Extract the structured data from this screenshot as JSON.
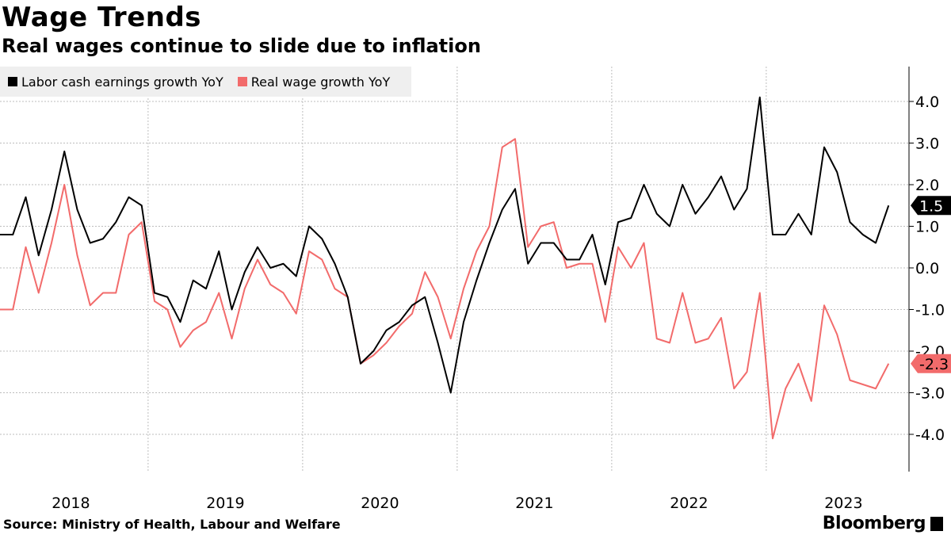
{
  "header": {
    "title": "Wage Trends",
    "subtitle": "Real wages continue to slide due to inflation"
  },
  "footer": {
    "source": "Source: Ministry of Health, Labour and Welfare",
    "brand": "Bloomberg"
  },
  "colors": {
    "labor": "#000000",
    "real": "#f26b6b",
    "grid": "#bdbdbd",
    "legend_bg": "#efefef"
  },
  "chart_data": {
    "type": "line",
    "title": "Wage Trends",
    "subtitle": "Real wages continue to slide due to inflation",
    "xlabel": "",
    "ylabel": "",
    "ylim": [
      -4.9,
      4.9
    ],
    "yticks": [
      4.0,
      3.0,
      2.0,
      1.0,
      0.0,
      -1.0,
      -2.0,
      -3.0,
      -4.0
    ],
    "ytick_labels": [
      "4.0",
      "3.0",
      "2.0",
      "1.0",
      "0.0",
      "-1.0",
      "-2.0",
      "-3.0",
      "-4.0"
    ],
    "grid": true,
    "legend_position": "top-left",
    "year_labels": [
      "2018",
      "2019",
      "2020",
      "2021",
      "2022",
      "2023"
    ],
    "x_start": "2018-01",
    "months_per_point": 1,
    "series": [
      {
        "name": "Labor cash earnings growth YoY",
        "end_label": "1.5",
        "values": [
          0.8,
          0.8,
          1.7,
          0.3,
          1.4,
          2.8,
          1.4,
          0.6,
          0.7,
          1.1,
          1.7,
          1.5,
          -0.6,
          -0.7,
          -1.3,
          -0.3,
          -0.5,
          0.4,
          -1.0,
          -0.1,
          0.5,
          0.0,
          0.1,
          -0.2,
          1.0,
          0.7,
          0.1,
          -0.7,
          -2.3,
          -2.0,
          -1.5,
          -1.3,
          -0.9,
          -0.7,
          -1.8,
          -3.0,
          -1.3,
          -0.3,
          0.6,
          1.4,
          1.9,
          0.1,
          0.6,
          0.6,
          0.2,
          0.2,
          0.8,
          -0.4,
          1.1,
          1.2,
          2.0,
          1.3,
          1.0,
          2.0,
          1.3,
          1.7,
          2.2,
          1.4,
          1.9,
          4.1,
          0.8,
          0.8,
          1.3,
          0.8,
          2.9,
          2.3,
          1.1,
          0.8,
          0.6,
          1.5
        ]
      },
      {
        "name": "Real wage growth YoY",
        "end_label": "-2.3",
        "values": [
          -1.0,
          -1.0,
          0.5,
          -0.6,
          0.6,
          2.0,
          0.3,
          -0.9,
          -0.6,
          -0.6,
          0.8,
          1.1,
          -0.8,
          -1.0,
          -1.9,
          -1.5,
          -1.3,
          -0.6,
          -1.7,
          -0.5,
          0.2,
          -0.4,
          -0.6,
          -1.1,
          0.4,
          0.2,
          -0.5,
          -0.7,
          -2.3,
          -2.1,
          -1.8,
          -1.4,
          -1.1,
          -0.1,
          -0.7,
          -1.7,
          -0.5,
          0.4,
          1.0,
          2.9,
          3.1,
          0.5,
          1.0,
          1.1,
          0.0,
          0.1,
          0.1,
          -1.3,
          0.5,
          0.0,
          0.6,
          -1.7,
          -1.8,
          -0.6,
          -1.8,
          -1.7,
          -1.2,
          -2.9,
          -2.5,
          -0.6,
          -4.1,
          -2.9,
          -2.3,
          -3.2,
          -0.9,
          -1.6,
          -2.7,
          -2.8,
          -2.9,
          -2.3
        ]
      }
    ]
  }
}
